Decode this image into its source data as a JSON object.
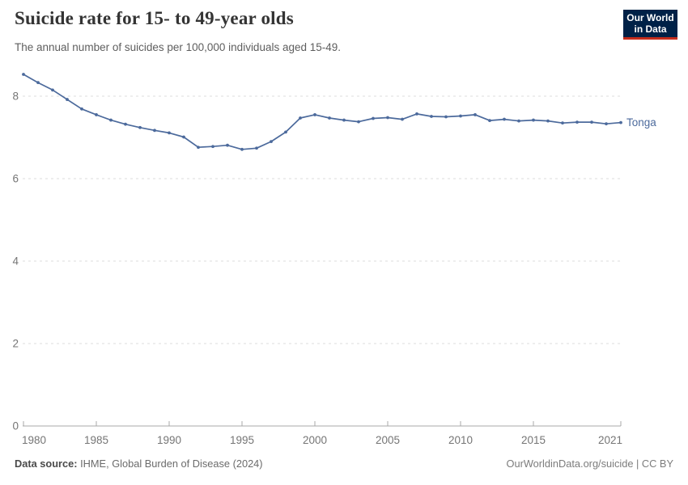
{
  "header": {
    "title": "Suicide rate for 15- to 49-year olds",
    "subtitle": "The annual number of suicides per 100,000 individuals aged 15-49.",
    "logo": {
      "line1": "Our World",
      "line2": "in Data",
      "bg": "#002147",
      "bar": "#c62d1c"
    }
  },
  "chart_data": {
    "type": "line",
    "title": "Suicide rate for 15- to 49-year olds",
    "subtitle": "The annual number of suicides per 100,000 individuals aged 15-49.",
    "xlabel": "",
    "ylabel": "",
    "x": [
      1980,
      1981,
      1982,
      1983,
      1984,
      1985,
      1986,
      1987,
      1988,
      1989,
      1990,
      1991,
      1992,
      1993,
      1994,
      1995,
      1996,
      1997,
      1998,
      1999,
      2000,
      2001,
      2002,
      2003,
      2004,
      2005,
      2006,
      2007,
      2008,
      2009,
      2010,
      2011,
      2012,
      2013,
      2014,
      2015,
      2016,
      2017,
      2018,
      2019,
      2020,
      2021
    ],
    "series": [
      {
        "name": "Tonga",
        "color": "#4C6A9C",
        "values": [
          8.53,
          8.33,
          8.15,
          7.92,
          7.69,
          7.55,
          7.42,
          7.32,
          7.24,
          7.17,
          7.11,
          7.01,
          6.76,
          6.78,
          6.81,
          6.71,
          6.74,
          6.9,
          7.13,
          7.47,
          7.55,
          7.47,
          7.42,
          7.38,
          7.46,
          7.48,
          7.44,
          7.57,
          7.51,
          7.5,
          7.52,
          7.55,
          7.41,
          7.44,
          7.4,
          7.42,
          7.4,
          7.35,
          7.37,
          7.37,
          7.33,
          7.36
        ]
      }
    ],
    "xlim": [
      1980,
      2021
    ],
    "ylim": [
      0,
      8.6
    ],
    "yticks": [
      0,
      2,
      4,
      6,
      8
    ],
    "xticks": [
      1980,
      1985,
      1990,
      1995,
      2000,
      2005,
      2010,
      2015,
      2021
    ],
    "grid": "horizontal-dashed",
    "legend_position": "end-of-line-label"
  },
  "footer": {
    "source_label": "Data source:",
    "source_text": " IHME, Global Burden of Disease (2024)",
    "credit": "OurWorldinData.org/suicide | CC BY"
  },
  "colors": {
    "line": "#4C6A9C",
    "grid": "#dcdcdc",
    "axis": "#a8a8a8",
    "tick_label": "#757575",
    "title": "#343434",
    "subtitle": "#5e5e5e",
    "footer_text": "#6b6b6b",
    "logo_bg": "#002147",
    "logo_bar": "#c62d1c",
    "background": "#ffffff"
  }
}
